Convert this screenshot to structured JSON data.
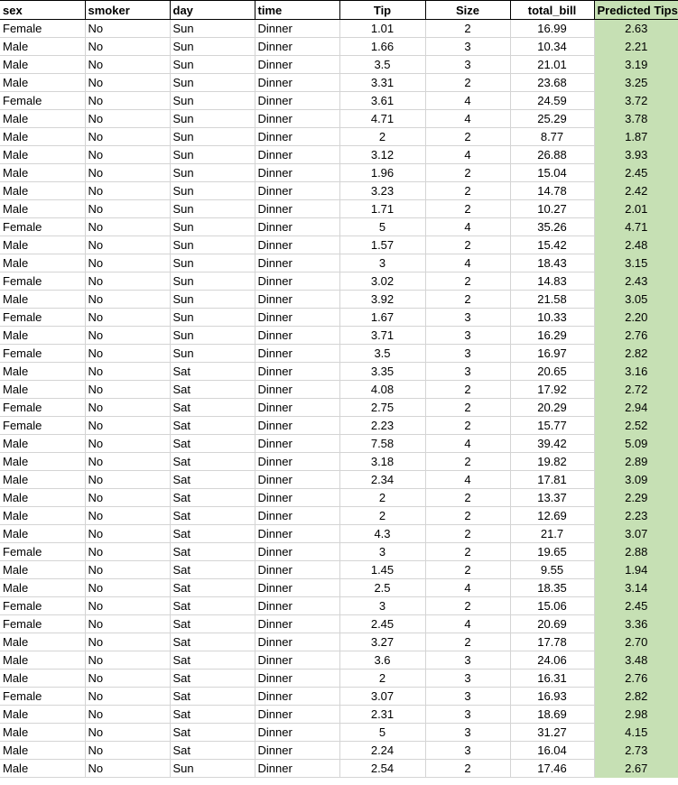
{
  "columns": [
    "sex",
    "smoker",
    "day",
    "time",
    "Tip",
    "Size",
    "total_bill",
    "Predicted Tips"
  ],
  "rows": [
    [
      "Female",
      "No",
      "Sun",
      "Dinner",
      "1.01",
      "2",
      "16.99",
      "2.63"
    ],
    [
      "Male",
      "No",
      "Sun",
      "Dinner",
      "1.66",
      "3",
      "10.34",
      "2.21"
    ],
    [
      "Male",
      "No",
      "Sun",
      "Dinner",
      "3.5",
      "3",
      "21.01",
      "3.19"
    ],
    [
      "Male",
      "No",
      "Sun",
      "Dinner",
      "3.31",
      "2",
      "23.68",
      "3.25"
    ],
    [
      "Female",
      "No",
      "Sun",
      "Dinner",
      "3.61",
      "4",
      "24.59",
      "3.72"
    ],
    [
      "Male",
      "No",
      "Sun",
      "Dinner",
      "4.71",
      "4",
      "25.29",
      "3.78"
    ],
    [
      "Male",
      "No",
      "Sun",
      "Dinner",
      "2",
      "2",
      "8.77",
      "1.87"
    ],
    [
      "Male",
      "No",
      "Sun",
      "Dinner",
      "3.12",
      "4",
      "26.88",
      "3.93"
    ],
    [
      "Male",
      "No",
      "Sun",
      "Dinner",
      "1.96",
      "2",
      "15.04",
      "2.45"
    ],
    [
      "Male",
      "No",
      "Sun",
      "Dinner",
      "3.23",
      "2",
      "14.78",
      "2.42"
    ],
    [
      "Male",
      "No",
      "Sun",
      "Dinner",
      "1.71",
      "2",
      "10.27",
      "2.01"
    ],
    [
      "Female",
      "No",
      "Sun",
      "Dinner",
      "5",
      "4",
      "35.26",
      "4.71"
    ],
    [
      "Male",
      "No",
      "Sun",
      "Dinner",
      "1.57",
      "2",
      "15.42",
      "2.48"
    ],
    [
      "Male",
      "No",
      "Sun",
      "Dinner",
      "3",
      "4",
      "18.43",
      "3.15"
    ],
    [
      "Female",
      "No",
      "Sun",
      "Dinner",
      "3.02",
      "2",
      "14.83",
      "2.43"
    ],
    [
      "Male",
      "No",
      "Sun",
      "Dinner",
      "3.92",
      "2",
      "21.58",
      "3.05"
    ],
    [
      "Female",
      "No",
      "Sun",
      "Dinner",
      "1.67",
      "3",
      "10.33",
      "2.20"
    ],
    [
      "Male",
      "No",
      "Sun",
      "Dinner",
      "3.71",
      "3",
      "16.29",
      "2.76"
    ],
    [
      "Female",
      "No",
      "Sun",
      "Dinner",
      "3.5",
      "3",
      "16.97",
      "2.82"
    ],
    [
      "Male",
      "No",
      "Sat",
      "Dinner",
      "3.35",
      "3",
      "20.65",
      "3.16"
    ],
    [
      "Male",
      "No",
      "Sat",
      "Dinner",
      "4.08",
      "2",
      "17.92",
      "2.72"
    ],
    [
      "Female",
      "No",
      "Sat",
      "Dinner",
      "2.75",
      "2",
      "20.29",
      "2.94"
    ],
    [
      "Female",
      "No",
      "Sat",
      "Dinner",
      "2.23",
      "2",
      "15.77",
      "2.52"
    ],
    [
      "Male",
      "No",
      "Sat",
      "Dinner",
      "7.58",
      "4",
      "39.42",
      "5.09"
    ],
    [
      "Male",
      "No",
      "Sat",
      "Dinner",
      "3.18",
      "2",
      "19.82",
      "2.89"
    ],
    [
      "Male",
      "No",
      "Sat",
      "Dinner",
      "2.34",
      "4",
      "17.81",
      "3.09"
    ],
    [
      "Male",
      "No",
      "Sat",
      "Dinner",
      "2",
      "2",
      "13.37",
      "2.29"
    ],
    [
      "Male",
      "No",
      "Sat",
      "Dinner",
      "2",
      "2",
      "12.69",
      "2.23"
    ],
    [
      "Male",
      "No",
      "Sat",
      "Dinner",
      "4.3",
      "2",
      "21.7",
      "3.07"
    ],
    [
      "Female",
      "No",
      "Sat",
      "Dinner",
      "3",
      "2",
      "19.65",
      "2.88"
    ],
    [
      "Male",
      "No",
      "Sat",
      "Dinner",
      "1.45",
      "2",
      "9.55",
      "1.94"
    ],
    [
      "Male",
      "No",
      "Sat",
      "Dinner",
      "2.5",
      "4",
      "18.35",
      "3.14"
    ],
    [
      "Female",
      "No",
      "Sat",
      "Dinner",
      "3",
      "2",
      "15.06",
      "2.45"
    ],
    [
      "Female",
      "No",
      "Sat",
      "Dinner",
      "2.45",
      "4",
      "20.69",
      "3.36"
    ],
    [
      "Male",
      "No",
      "Sat",
      "Dinner",
      "3.27",
      "2",
      "17.78",
      "2.70"
    ],
    [
      "Male",
      "No",
      "Sat",
      "Dinner",
      "3.6",
      "3",
      "24.06",
      "3.48"
    ],
    [
      "Male",
      "No",
      "Sat",
      "Dinner",
      "2",
      "3",
      "16.31",
      "2.76"
    ],
    [
      "Female",
      "No",
      "Sat",
      "Dinner",
      "3.07",
      "3",
      "16.93",
      "2.82"
    ],
    [
      "Male",
      "No",
      "Sat",
      "Dinner",
      "2.31",
      "3",
      "18.69",
      "2.98"
    ],
    [
      "Male",
      "No",
      "Sat",
      "Dinner",
      "5",
      "3",
      "31.27",
      "4.15"
    ],
    [
      "Male",
      "No",
      "Sat",
      "Dinner",
      "2.24",
      "3",
      "16.04",
      "2.73"
    ],
    [
      "Male",
      "No",
      "Sun",
      "Dinner",
      "2.54",
      "2",
      "17.46",
      "2.67"
    ]
  ],
  "colors": {
    "predicted_fill": "#c6e0b4",
    "gridline": "#d4d4d4"
  }
}
